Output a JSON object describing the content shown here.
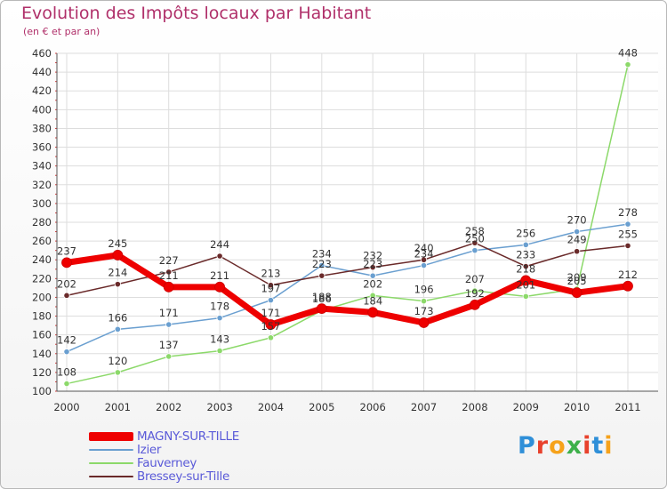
{
  "title": "Evolution des Impôts locaux par Habitant",
  "subtitle": "(en € et par an)",
  "brand": {
    "letters": [
      "P",
      "r",
      "o",
      "x",
      "i",
      "t",
      "i"
    ],
    "colors": [
      "#2f8fd8",
      "#e8412c",
      "#f6a21a",
      "#3db04a",
      "#e8412c",
      "#2f8fd8",
      "#f6a21a"
    ]
  },
  "chart_data": {
    "type": "line",
    "title": "Evolution des Impôts locaux par Habitant",
    "subtitle": "(en € et par an)",
    "categories": [
      "2000",
      "2001",
      "2002",
      "2003",
      "2004",
      "2005",
      "2006",
      "2007",
      "2008",
      "2009",
      "2010",
      "2011"
    ],
    "ylim": [
      100,
      460
    ],
    "yticks": [
      100,
      120,
      140,
      160,
      180,
      200,
      220,
      240,
      260,
      280,
      300,
      320,
      340,
      360,
      380,
      400,
      420,
      440,
      460
    ],
    "legend_position": "bottom-left",
    "series": [
      {
        "name": "MAGNY-SUR-TILLE",
        "color": "#ee0000",
        "width": 7,
        "values": [
          237,
          245,
          211,
          211,
          171,
          188,
          184,
          173,
          192,
          218,
          205,
          212
        ],
        "labels": [
          "237",
          "245",
          "211",
          "211",
          "171",
          "188",
          "184",
          "173",
          "192",
          "218",
          "205",
          "212"
        ]
      },
      {
        "name": "Izier",
        "color": "#6a9fd0",
        "width": 1.5,
        "values": [
          142,
          166,
          171,
          178,
          197,
          234,
          223,
          234,
          250,
          256,
          270,
          278
        ],
        "labels": [
          "142",
          "166",
          "171",
          "178",
          "197",
          "234",
          "223",
          "234",
          "250",
          "256",
          "270",
          "278"
        ]
      },
      {
        "name": "Fauverney",
        "color": "#8cd96a",
        "width": 1.5,
        "values": [
          108,
          120,
          137,
          143,
          157,
          186,
          202,
          196,
          207,
          201,
          209,
          448
        ],
        "labels": [
          "108",
          "120",
          "137",
          "143",
          "157",
          "186",
          "202",
          "196",
          "207",
          "201",
          "209",
          "448"
        ]
      },
      {
        "name": "Bressey-sur-Tille",
        "color": "#6a2a2a",
        "width": 1.5,
        "values": [
          202,
          214,
          227,
          244,
          213,
          223,
          232,
          240,
          258,
          233,
          249,
          255
        ],
        "labels": [
          "202",
          "214",
          "227",
          "244",
          "213",
          "223",
          "232",
          "240",
          "258",
          "233",
          "249",
          "255"
        ]
      }
    ]
  }
}
